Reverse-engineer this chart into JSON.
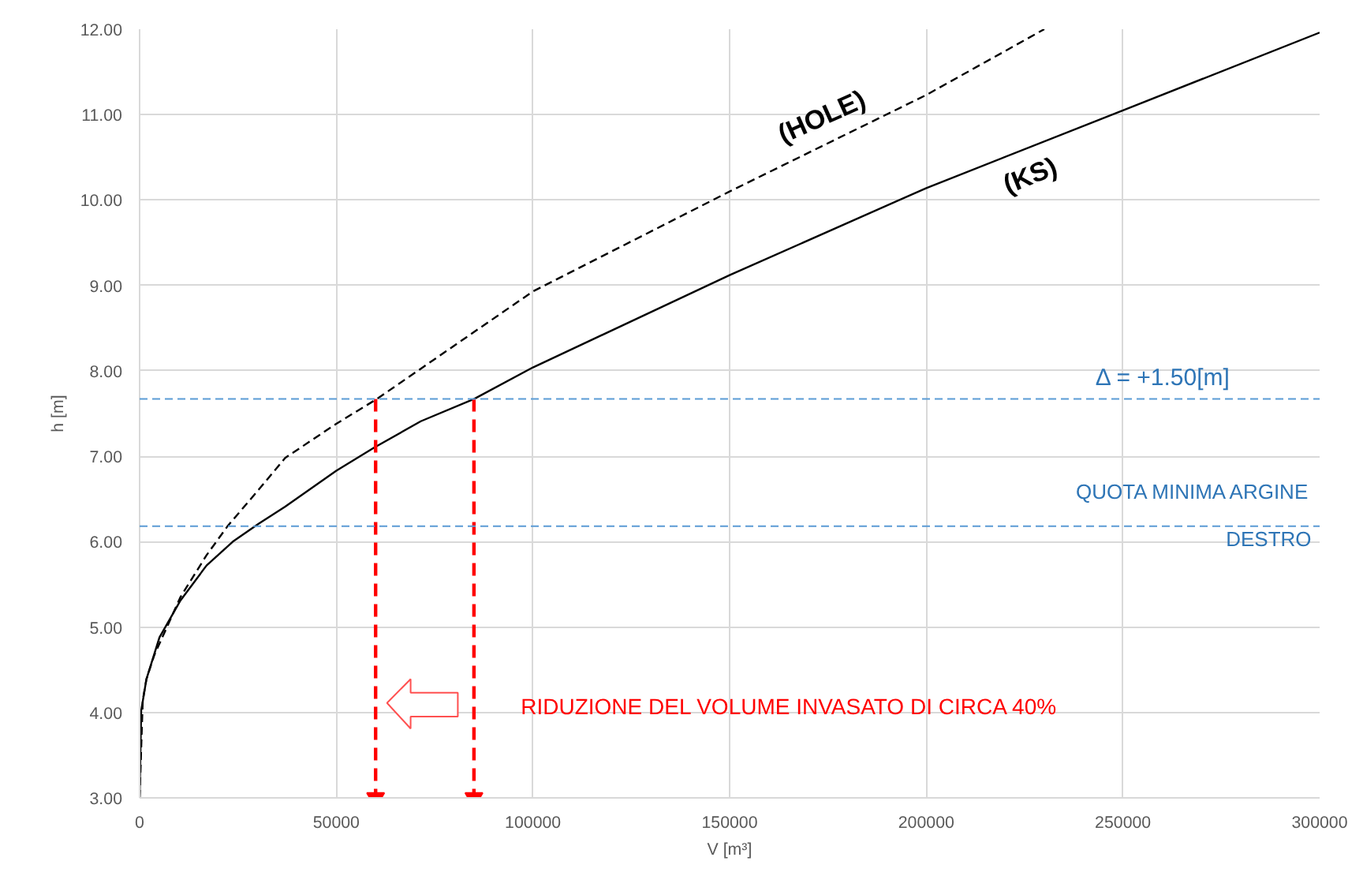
{
  "chart_data": {
    "type": "line",
    "xlabel": "V [m³]",
    "ylabel": "h [m]",
    "xlim": [
      0,
      300000
    ],
    "ylim": [
      3,
      12
    ],
    "xticks": [
      0,
      50000,
      100000,
      150000,
      200000,
      250000,
      300000
    ],
    "yticks": [
      {
        "value": 3,
        "label": "3.00"
      },
      {
        "value": 4,
        "label": "4.00"
      },
      {
        "value": 5,
        "label": "5.00"
      },
      {
        "value": 6,
        "label": "6.00"
      },
      {
        "value": 7,
        "label": "7.00"
      },
      {
        "value": 8,
        "label": "8.00"
      },
      {
        "value": 9,
        "label": "9.00"
      },
      {
        "value": 10,
        "label": "10.00"
      },
      {
        "value": 11,
        "label": "11.00"
      },
      {
        "value": 12,
        "label": "12.00"
      }
    ],
    "grid": true,
    "series": [
      {
        "name": "(KS)",
        "color": "#000000",
        "line_style": "solid",
        "x": [
          0,
          400,
          1730,
          5050,
          10370,
          17000,
          23700,
          30300,
          37000,
          50000,
          59600,
          71500,
          85000,
          100000,
          150000,
          200000,
          250000,
          300000
        ],
        "values": [
          3.0,
          4.02,
          4.39,
          4.88,
          5.31,
          5.72,
          6.0,
          6.21,
          6.41,
          6.83,
          7.1,
          7.41,
          7.67,
          8.04,
          9.12,
          10.14,
          11.05,
          11.96
        ]
      },
      {
        "name": "(HOLE)",
        "color": "#000000",
        "line_style": "dashed",
        "x": [
          0,
          800,
          1730,
          3720,
          10370,
          17000,
          22340,
          30300,
          37000,
          50000,
          60300,
          100000,
          150000,
          200000,
          230000
        ],
        "values": [
          3.0,
          4.14,
          4.39,
          4.67,
          5.35,
          5.84,
          6.18,
          6.61,
          6.98,
          7.38,
          7.67,
          8.93,
          10.1,
          11.23,
          12.0
        ]
      },
      {
        "color": "#ff0000",
        "line_style": "dashed",
        "marker": "triangle",
        "x": [
          60000,
          60000
        ],
        "values": [
          7.67,
          3.0
        ]
      },
      {
        "color": "#ff0000",
        "line_style": "dashed",
        "marker": "triangle",
        "x": [
          85000,
          85000
        ],
        "values": [
          7.67,
          3.0
        ]
      }
    ],
    "ref_lines": [
      {
        "axis": "y",
        "value": 7.67,
        "label": "Δ = +1.50[m]",
        "color": "#5b9bd5",
        "line_style": "dashed"
      },
      {
        "axis": "y",
        "value": 6.18,
        "label": "QUOTA MINIMA ARGINE\nDESTRO",
        "color": "#5b9bd5",
        "line_style": "dashed"
      }
    ],
    "annotations": [
      "RIDUZIONE DEL VOLUME INVASATO DI CIRCA 40%"
    ]
  }
}
